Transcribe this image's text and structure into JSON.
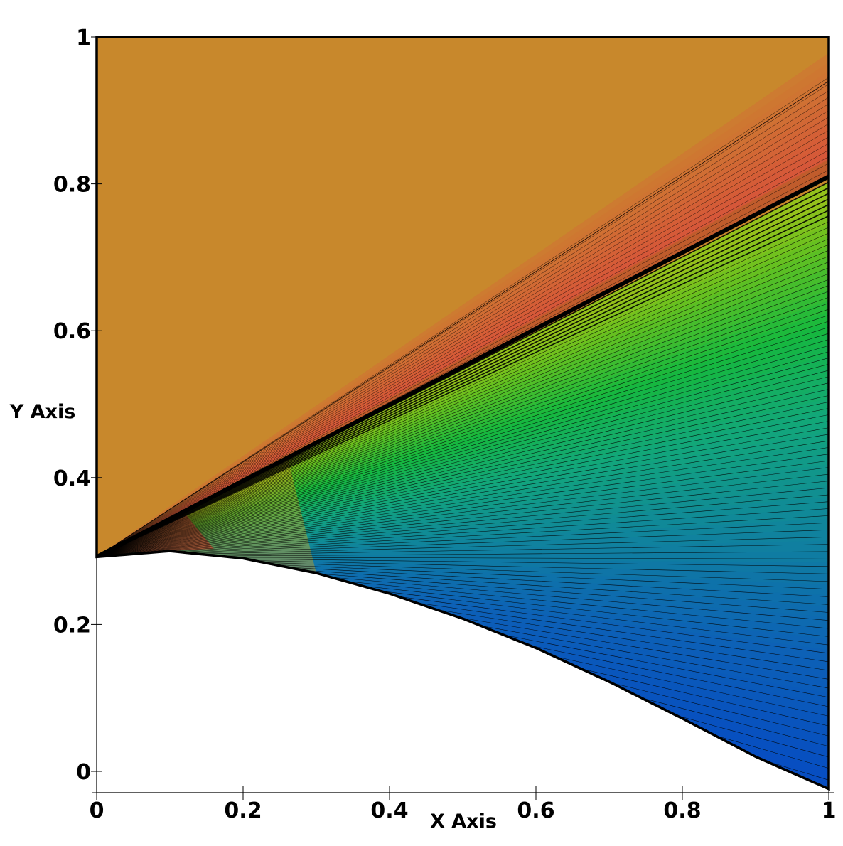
{
  "chart_data": {
    "type": "heatmap",
    "title": "",
    "xlabel": "X Axis",
    "ylabel": "Y Axis",
    "xlim": [
      0,
      1
    ],
    "ylim": [
      -0.03,
      1
    ],
    "x_ticks": [
      {
        "value": 0,
        "label": "0"
      },
      {
        "value": 0.2,
        "label": "0.2"
      },
      {
        "value": 0.4,
        "label": "0.4"
      },
      {
        "value": 0.6,
        "label": "0.6"
      },
      {
        "value": 0.8,
        "label": "0.8"
      },
      {
        "value": 1,
        "label": "1"
      }
    ],
    "y_ticks": [
      {
        "value": 0,
        "label": "0"
      },
      {
        "value": 0.2,
        "label": "0.2"
      },
      {
        "value": 0.4,
        "label": "0.4"
      },
      {
        "value": 0.6,
        "label": "0.6"
      },
      {
        "value": 0.8,
        "label": "0.8"
      },
      {
        "value": 1,
        "label": "1"
      }
    ],
    "lower_wall": [
      [
        0,
        0.292
      ],
      [
        0.1,
        0.3
      ],
      [
        0.2,
        0.29
      ],
      [
        0.3,
        0.27
      ],
      [
        0.4,
        0.242
      ],
      [
        0.5,
        0.208
      ],
      [
        0.6,
        0.168
      ],
      [
        0.7,
        0.122
      ],
      [
        0.8,
        0.072
      ],
      [
        0.9,
        0.02
      ],
      [
        1,
        -0.024
      ]
    ],
    "shock_line": [
      [
        0,
        0.292
      ],
      [
        1,
        0.81
      ]
    ],
    "outer_boundary_line": [
      [
        0,
        0.292
      ],
      [
        1,
        0.94
      ]
    ],
    "freestream_color": "#c8882c",
    "contour_line_color": "#000000",
    "colormap": [
      "#0548c4",
      "#0d62b6",
      "#10849c",
      "#12a67c",
      "#16b83e",
      "#6cc11e",
      "#c8c018",
      "#d88a26",
      "#d85a30",
      "#d83a40",
      "#c8105a"
    ],
    "grid": false,
    "legend": "none"
  }
}
